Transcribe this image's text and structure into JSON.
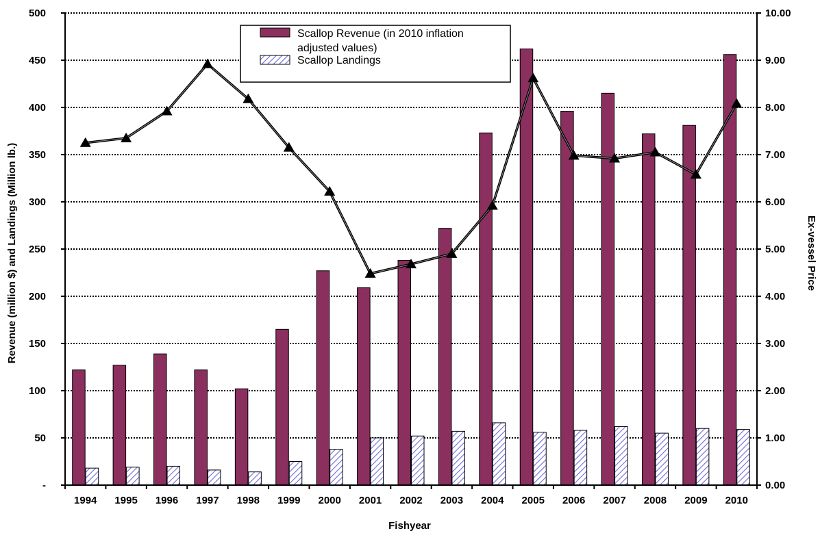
{
  "chart_data": {
    "type": "bar",
    "categories": [
      "1994",
      "1995",
      "1996",
      "1997",
      "1998",
      "1999",
      "2000",
      "2001",
      "2002",
      "2003",
      "2004",
      "2005",
      "2006",
      "2007",
      "2008",
      "2009",
      "2010"
    ],
    "series": [
      {
        "name": "Scallop Revenue (in 2010 inflation adjusted values)",
        "kind": "bar",
        "axis": "left",
        "values": [
          122,
          127,
          139,
          122,
          102,
          165,
          227,
          209,
          238,
          272,
          373,
          462,
          396,
          415,
          372,
          381,
          456
        ]
      },
      {
        "name": "Scallop Landings",
        "kind": "bar",
        "axis": "left",
        "values": [
          18,
          19,
          20,
          16,
          14,
          25,
          38,
          50,
          52,
          57,
          66,
          56,
          58,
          62,
          55,
          60,
          59
        ]
      },
      {
        "name": "",
        "kind": "line",
        "axis": "right",
        "values": [
          7.25,
          7.35,
          7.92,
          8.92,
          8.18,
          7.15,
          6.22,
          4.48,
          4.68,
          4.9,
          5.92,
          8.62,
          6.98,
          6.92,
          7.05,
          6.58,
          8.08
        ]
      }
    ],
    "left_axis": {
      "title": "Revenue (million $) and Landings (Million lb.)",
      "ticks": [
        {
          "v": 0,
          "label": "-"
        },
        {
          "v": 50,
          "label": "50"
        },
        {
          "v": 100,
          "label": "100"
        },
        {
          "v": 150,
          "label": "150"
        },
        {
          "v": 200,
          "label": "200"
        },
        {
          "v": 250,
          "label": "250"
        },
        {
          "v": 300,
          "label": "300"
        },
        {
          "v": 350,
          "label": "350"
        },
        {
          "v": 400,
          "label": "400"
        },
        {
          "v": 450,
          "label": "450"
        },
        {
          "v": 500,
          "label": "500"
        }
      ],
      "ylim": [
        0,
        500
      ]
    },
    "right_axis": {
      "title": "Ex-vessel Price",
      "ticks": [
        "0.00",
        "1.00",
        "2.00",
        "3.00",
        "4.00",
        "5.00",
        "6.00",
        "7.00",
        "8.00",
        "9.00",
        "10.00"
      ],
      "ylim": [
        0,
        10
      ]
    },
    "xlabel": "Fishyear",
    "grid": true,
    "legend_position": "top-center",
    "colors": {
      "revenue": "#8B2F5E",
      "landings_stripe": "#6E6BD8",
      "line": "#000000"
    }
  }
}
